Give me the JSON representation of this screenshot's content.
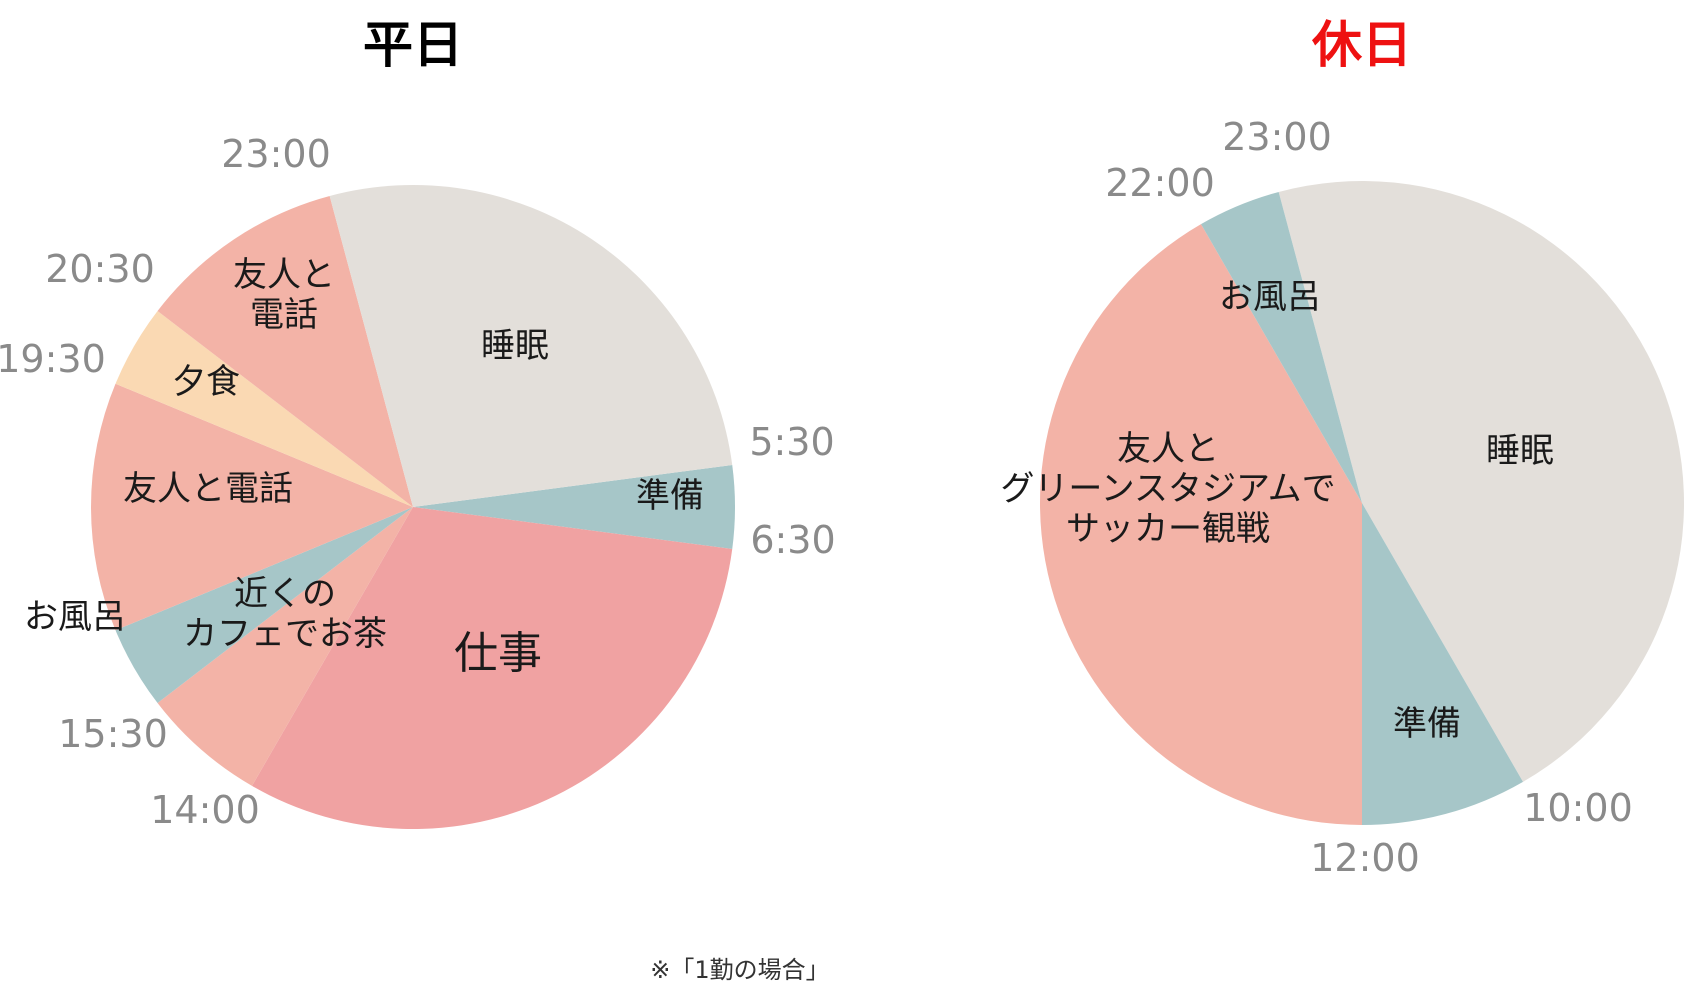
{
  "colors": {
    "sleep": "#e3dfda",
    "prep": "#a6c6c8",
    "work": "#f0a2a2",
    "friends": "#f3b3a7",
    "dinner": "#fad9b3",
    "cafe": "#f3b3a7",
    "bath": "#a6c6c8",
    "weekday_title": "#000000",
    "holiday_title": "#ee1111",
    "time_label": "#8a8a8a"
  },
  "footnote": "※「1勤の場合」",
  "chart_data": [
    {
      "id": "weekday",
      "type": "pie",
      "title": "平日",
      "title_color": "#000000",
      "unit": "hours",
      "start_time_hours": 5.5,
      "direction": "clockwise",
      "slices": [
        {
          "key": "prep",
          "label": "準備",
          "start": "5:30",
          "end": "6:30",
          "value": 1.0,
          "color": "#a6c6c8"
        },
        {
          "key": "work",
          "label": "仕事",
          "start": "6:30",
          "end": "14:00",
          "value": 7.5,
          "color": "#f0a2a2"
        },
        {
          "key": "cafe",
          "label": "近くのカフェでお茶",
          "lines": [
            "近くの",
            "カフェでお茶"
          ],
          "start": "14:00",
          "end": "15:30",
          "value": 1.5,
          "color": "#f3b3a7"
        },
        {
          "key": "bath",
          "label": "お風呂",
          "start": "15:30",
          "end": "16:30",
          "value": 1.0,
          "color": "#a6c6c8"
        },
        {
          "key": "friends1",
          "label": "友人と電話",
          "start": "16:30",
          "end": "19:30",
          "value": 3.0,
          "color": "#f3b3a7"
        },
        {
          "key": "dinner",
          "label": "夕食",
          "start": "19:30",
          "end": "20:30",
          "value": 1.0,
          "color": "#fad9b3"
        },
        {
          "key": "friends2",
          "label": "友人と電話",
          "lines": [
            "友人と",
            "電話"
          ],
          "start": "20:30",
          "end": "23:00",
          "value": 2.5,
          "color": "#f3b3a7"
        },
        {
          "key": "sleep",
          "label": "睡眠",
          "start": "23:00",
          "end": "5:30",
          "value": 6.5,
          "color": "#e3dfda"
        }
      ],
      "time_labels": [
        "5:30",
        "6:30",
        "14:00",
        "15:30",
        "19:30",
        "20:30",
        "23:00"
      ]
    },
    {
      "id": "holiday",
      "type": "pie",
      "title": "休日",
      "title_color": "#ee1111",
      "unit": "hours",
      "start_time_hours": 23.0,
      "direction": "clockwise",
      "slices": [
        {
          "key": "sleep",
          "label": "睡眠",
          "start": "23:00",
          "end": "10:00",
          "value": 11.0,
          "color": "#e3dfda"
        },
        {
          "key": "prep",
          "label": "準備",
          "start": "10:00",
          "end": "12:00",
          "value": 2.0,
          "color": "#a6c6c8"
        },
        {
          "key": "soccer",
          "label": "友人とグリーンスタジアムでサッカー観戦",
          "lines": [
            "友人と",
            "グリーンスタジアムで",
            "サッカー観戦"
          ],
          "start": "12:00",
          "end": "22:00",
          "value": 10.0,
          "color": "#f3b3a7"
        },
        {
          "key": "bath",
          "label": "お風呂",
          "start": "22:00",
          "end": "23:00",
          "value": 1.0,
          "color": "#a6c6c8"
        }
      ],
      "time_labels": [
        "23:00",
        "10:00",
        "12:00",
        "22:00"
      ]
    }
  ]
}
